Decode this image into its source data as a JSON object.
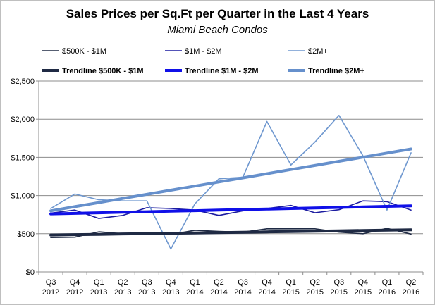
{
  "chart_data": {
    "type": "line",
    "title": "Sales Prices per Sq.Ft per Quarter in the Last 4 Years",
    "subtitle": "Miami Beach Condos",
    "xlabel": "",
    "ylabel": "",
    "ylim": [
      0,
      2500
    ],
    "yticks": [
      "$0",
      "$500",
      "$1,000",
      "$1,500",
      "$2,000",
      "$2,500"
    ],
    "categories": [
      [
        "Q3",
        "2012"
      ],
      [
        "Q4",
        "2012"
      ],
      [
        "Q1",
        "2013"
      ],
      [
        "Q2",
        "2013"
      ],
      [
        "Q3",
        "2013"
      ],
      [
        "Q4",
        "2013"
      ],
      [
        "Q1",
        "2014"
      ],
      [
        "Q2",
        "2014"
      ],
      [
        "Q3",
        "2014"
      ],
      [
        "Q4",
        "2014"
      ],
      [
        "Q1",
        "2015"
      ],
      [
        "Q2",
        "2015"
      ],
      [
        "Q3",
        "2015"
      ],
      [
        "Q4",
        "2015"
      ],
      [
        "Q1",
        "2016"
      ],
      [
        "Q2",
        "2016"
      ]
    ],
    "grid": true,
    "legend_position": "top",
    "series": [
      {
        "name": "$500K - $1M",
        "color": "#1f2a44",
        "kind": "data",
        "values": [
          450,
          455,
          525,
          500,
          490,
          490,
          545,
          530,
          520,
          565,
          565,
          565,
          520,
          500,
          570,
          495
        ]
      },
      {
        "name": "$1M - $2M",
        "color": "#1c1ca0",
        "kind": "data",
        "values": [
          770,
          810,
          700,
          740,
          840,
          830,
          810,
          740,
          800,
          830,
          870,
          775,
          815,
          930,
          920,
          810
        ]
      },
      {
        "name": "$2M+",
        "color": "#6e97cf",
        "kind": "data",
        "values": [
          830,
          1020,
          945,
          930,
          930,
          300,
          890,
          1220,
          1240,
          1970,
          1400,
          1700,
          2050,
          1520,
          810,
          1560
        ]
      },
      {
        "name": "Trendline $500K - $1M",
        "color": "#1f2a44",
        "kind": "trend",
        "values": [
          483,
          488,
          492,
          497,
          501,
          506,
          510,
          515,
          519,
          524,
          528,
          533,
          537,
          542,
          546,
          551
        ]
      },
      {
        "name": "Trendline $1M - $2M",
        "color": "#1010e8",
        "kind": "trend",
        "values": [
          760,
          767,
          774,
          781,
          788,
          795,
          802,
          809,
          816,
          823,
          830,
          837,
          844,
          851,
          858,
          865
        ]
      },
      {
        "name": "Trendline $2M+",
        "color": "#6690cc",
        "kind": "trend",
        "values": [
          800,
          854,
          908,
          962,
          1016,
          1070,
          1124,
          1178,
          1232,
          1286,
          1340,
          1394,
          1448,
          1502,
          1556,
          1610
        ]
      }
    ]
  }
}
